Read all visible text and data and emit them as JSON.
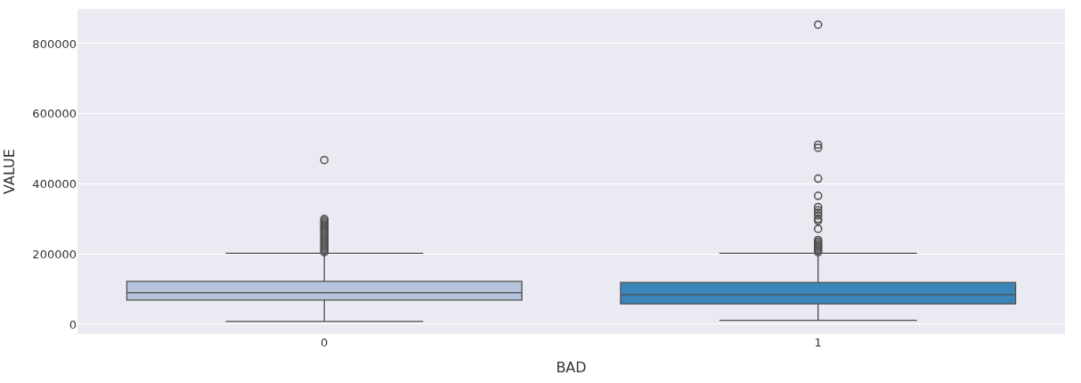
{
  "chart_data": {
    "type": "box",
    "xlabel": "BAD",
    "ylabel": "VALUE",
    "categories": [
      "0",
      "1"
    ],
    "boxes": [
      {
        "low": 8000,
        "q1": 69000,
        "median": 90000,
        "q3": 122000,
        "high": 202000,
        "outliers": [
          205000,
          210000,
          215000,
          220000,
          225000,
          230000,
          235000,
          240000,
          245000,
          250000,
          255000,
          260000,
          265000,
          270000,
          275000,
          280000,
          285000,
          290000,
          295000,
          300000,
          468000
        ]
      },
      {
        "low": 11000,
        "q1": 58000,
        "median": 84000,
        "q3": 119000,
        "high": 202000,
        "outliers": [
          205000,
          210000,
          215000,
          220000,
          225000,
          230000,
          235000,
          240000,
          272000,
          295000,
          300000,
          310000,
          318000,
          325000,
          334000,
          366000,
          415000,
          503000,
          512000,
          854000
        ]
      }
    ],
    "colors": [
      "#b6c3dc",
      "#3a86b8"
    ],
    "ylim": [
      -28000,
      899000
    ],
    "yticks": [
      0,
      200000,
      400000,
      600000,
      800000
    ],
    "grid": "y"
  }
}
